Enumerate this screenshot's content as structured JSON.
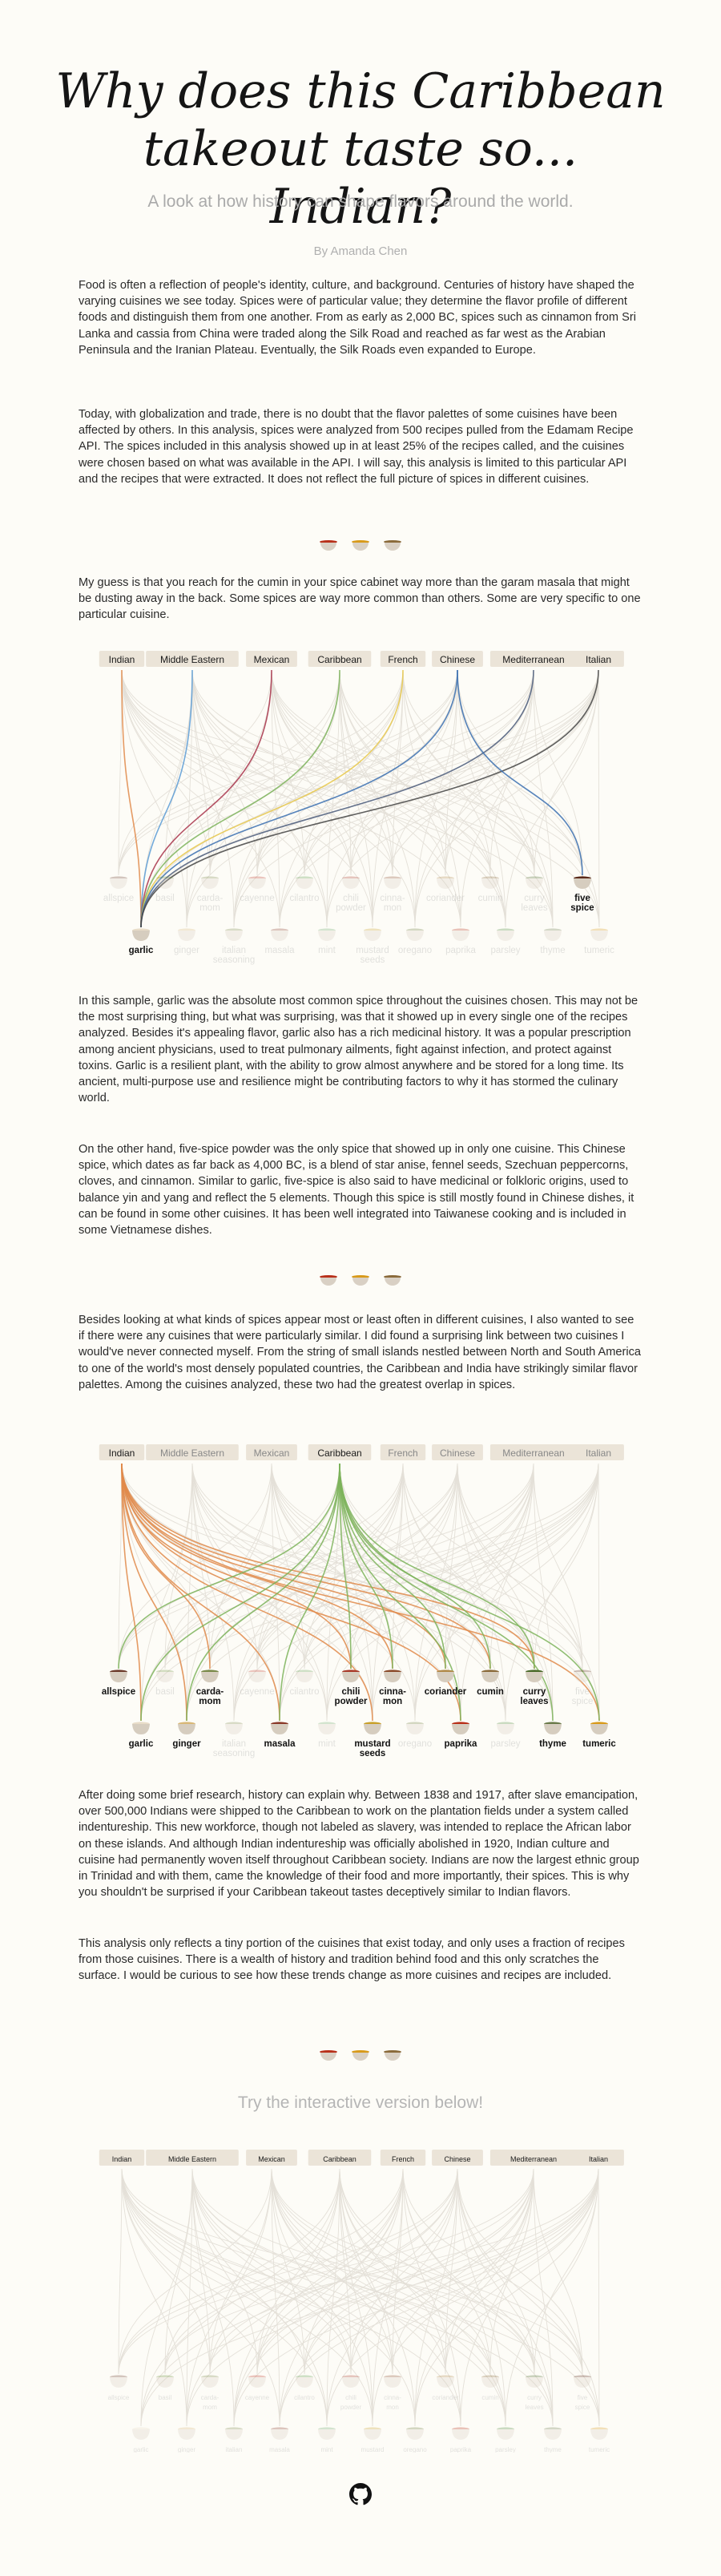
{
  "title": "Why does this Caribbean takeout taste so... Indian?",
  "subtitle": "A look at how history can shape flavors around the world.",
  "byline": "By Amanda Chen",
  "paragraphs": {
    "p1": "Food is often a reflection of people's identity, culture, and background. Centuries of history have shaped the varying cuisines we see today. Spices were of particular value; they determine the flavor profile of different foods and distinguish them from one another. From as early as 2,000 BC, spices such as cinnamon from Sri Lanka and cassia from China were traded along the Silk Road and reached as far west as the Arabian Peninsula and the Iranian Plateau. Eventually, the Silk Roads even expanded to Europe.",
    "p2": "Today, with globalization and trade, there is no doubt that the flavor palettes of some cuisines have been affected by others. In this analysis, spices were analyzed from 500 recipes pulled from the Edamam Recipe API. The spices included in this analysis showed up in at least 25% of the recipes called, and the cuisines were chosen based on what was available in the API. I will say, this analysis is limited to this particular API and the recipes that were extracted. It does not reflect the full picture of spices in different cuisines.",
    "p3": "My guess is that you reach for the cumin in your spice cabinet way more than the garam masala that might be dusting away in the back. Some spices are way more common than others. Some are very specific to one particular cuisine.",
    "p4": "In this sample, garlic was the absolute most common spice throughout the cuisines chosen. This may not be the most surprising thing, but what was surprising, was that it showed up in every single one of the recipes analyzed. Besides it's appealing flavor, garlic also has a rich medicinal history. It was a popular prescription among ancient physicians, used to treat pulmonary ailments, fight against infection, and protect against toxins. Garlic is a resilient plant, with the ability to grow almost anywhere and be stored for a long time. Its ancient, multi-purpose use and resilience might be contributing factors to why it has stormed the culinary world.",
    "p5": "On the other hand, five-spice powder was the only spice that showed up in only one cuisine. This Chinese spice, which dates as far back as 4,000 BC, is a blend of star anise, fennel seeds, Szechuan peppercorns, cloves, and cinnamon. Similar to garlic, five-spice is also said to have medicinal or folkloric origins, used to balance yin and yang and reflect the 5 elements. Though this spice is still mostly found in Chinese dishes, it can be found in some other cuisines. It has been well integrated into Taiwanese cooking and is included in some Vietnamese dishes.",
    "p6": "Besides looking at what kinds of spices appear most or least often in different cuisines, I also wanted to see if there were any cuisines that were particularly similar. I did found a surprising link between two cuisines I would've never connected myself. From the string of small islands nestled between North and South America to one of the world's most densely populated countries, the Caribbean and India have strikingly similar flavor palettes. Among the cuisines analyzed, these two had the greatest overlap in spices.",
    "p7": "After doing some brief research, history can explain why. Between 1838 and 1917, after slave emancipation, over 500,000 Indians were shipped to the Caribbean to work on the plantation fields under a system called indentureship. This new workforce, though not labeled as slavery, was intended to replace the African labor on these islands. And although Indian indentureship was officially abolished in 1920, Indian culture and cuisine had permanently woven itself throughout Caribbean society. Indians are now the largest ethnic group in Trinidad and with them, came the knowledge of their food and more importantly, their spices. This is why you shouldn't be surprised if your Caribbean takeout tastes deceptively similar to Indian flavors.",
    "p8": "This analysis only reflects a tiny portion of the cuisines that exist today, and only uses a fraction of recipes from those cuisines. There is a wealth of history and tradition behind food and this only scratches the surface. I would be curious to see how these trends change as more cuisines and recipes are included."
  },
  "try_text": "Try the interactive version below!",
  "cuisines": [
    "Indian",
    "Middle Eastern",
    "Mexican",
    "Caribbean",
    "French",
    "Chinese",
    "Mediterranean",
    "Italian"
  ],
  "spices_row1": [
    "allspice",
    "basil",
    "carda-mom",
    "cayenne",
    "cilantro",
    "chili powder",
    "cinna-mon",
    "coriander",
    "cumin",
    "curry leaves",
    "five spice"
  ],
  "spices_row2": [
    "garlic",
    "ginger",
    "italian seasoning",
    "masala",
    "mint",
    "mustard seeds",
    "oregano",
    "paprika",
    "parsley",
    "thyme",
    "tumeric"
  ],
  "colors": {
    "Indian": "#e08a4a",
    "Middle Eastern": "#5b9bd5",
    "Mexican": "#a8324a",
    "Caribbean": "#7cb35a",
    "French": "#e8c84a",
    "Chinese": "#3a6fb0",
    "Mediterranean": "#4a5a7a",
    "Italian": "#444444",
    "background": "#fdfcf7",
    "label_bg": "#ebe4d8"
  },
  "diagram1": {
    "highlight_spices": [
      "garlic",
      "five spice"
    ],
    "links": [
      [
        "Indian",
        "garlic"
      ],
      [
        "Middle Eastern",
        "garlic"
      ],
      [
        "Mexican",
        "garlic"
      ],
      [
        "Caribbean",
        "garlic"
      ],
      [
        "French",
        "garlic"
      ],
      [
        "Chinese",
        "garlic"
      ],
      [
        "Mediterranean",
        "garlic"
      ],
      [
        "Italian",
        "garlic"
      ],
      [
        "Chinese",
        "five spice"
      ]
    ]
  },
  "diagram2": {
    "highlight_cuisines": [
      "Indian",
      "Caribbean"
    ],
    "highlight_spices": [
      "allspice",
      "carda-mom",
      "chili powder",
      "cinna-mon",
      "coriander",
      "cumin",
      "curry leaves",
      "garlic",
      "ginger",
      "masala",
      "mustard seeds",
      "paprika",
      "thyme",
      "tumeric"
    ],
    "indian_spices": [
      "carda-mom",
      "chili powder",
      "cinna-mon",
      "coriander",
      "cumin",
      "curry leaves",
      "garlic",
      "ginger",
      "masala",
      "mustard seeds",
      "paprika",
      "tumeric"
    ],
    "caribbean_spices": [
      "allspice",
      "chili powder",
      "cinna-mon",
      "coriander",
      "cumin",
      "curry leaves",
      "garlic",
      "ginger",
      "masala",
      "paprika",
      "thyme",
      "tumeric"
    ]
  },
  "spice_colors": {
    "allspice": "#6b3a2a",
    "basil": "#6b8e3a",
    "carda-mom": "#7a8a4a",
    "cayenne": "#c0392b",
    "cilantro": "#5a9a4a",
    "chili powder": "#a83a2a",
    "cinna-mon": "#8a4a2a",
    "coriander": "#b08a4a",
    "cumin": "#8a6a3a",
    "curry leaves": "#4a6a2a",
    "five spice": "#5a2a1a",
    "garlic": "#e8dcc8",
    "ginger": "#d8b878",
    "italian seasoning": "#7a8a4a",
    "masala": "#8a3a2a",
    "mint": "#6aaa6a",
    "mustard seeds": "#c8a02a",
    "oregano": "#6a7a3a",
    "paprika": "#b8301a",
    "parsley": "#4a8a3a",
    "thyme": "#6a7a4a",
    "tumeric": "#d89a1a"
  }
}
